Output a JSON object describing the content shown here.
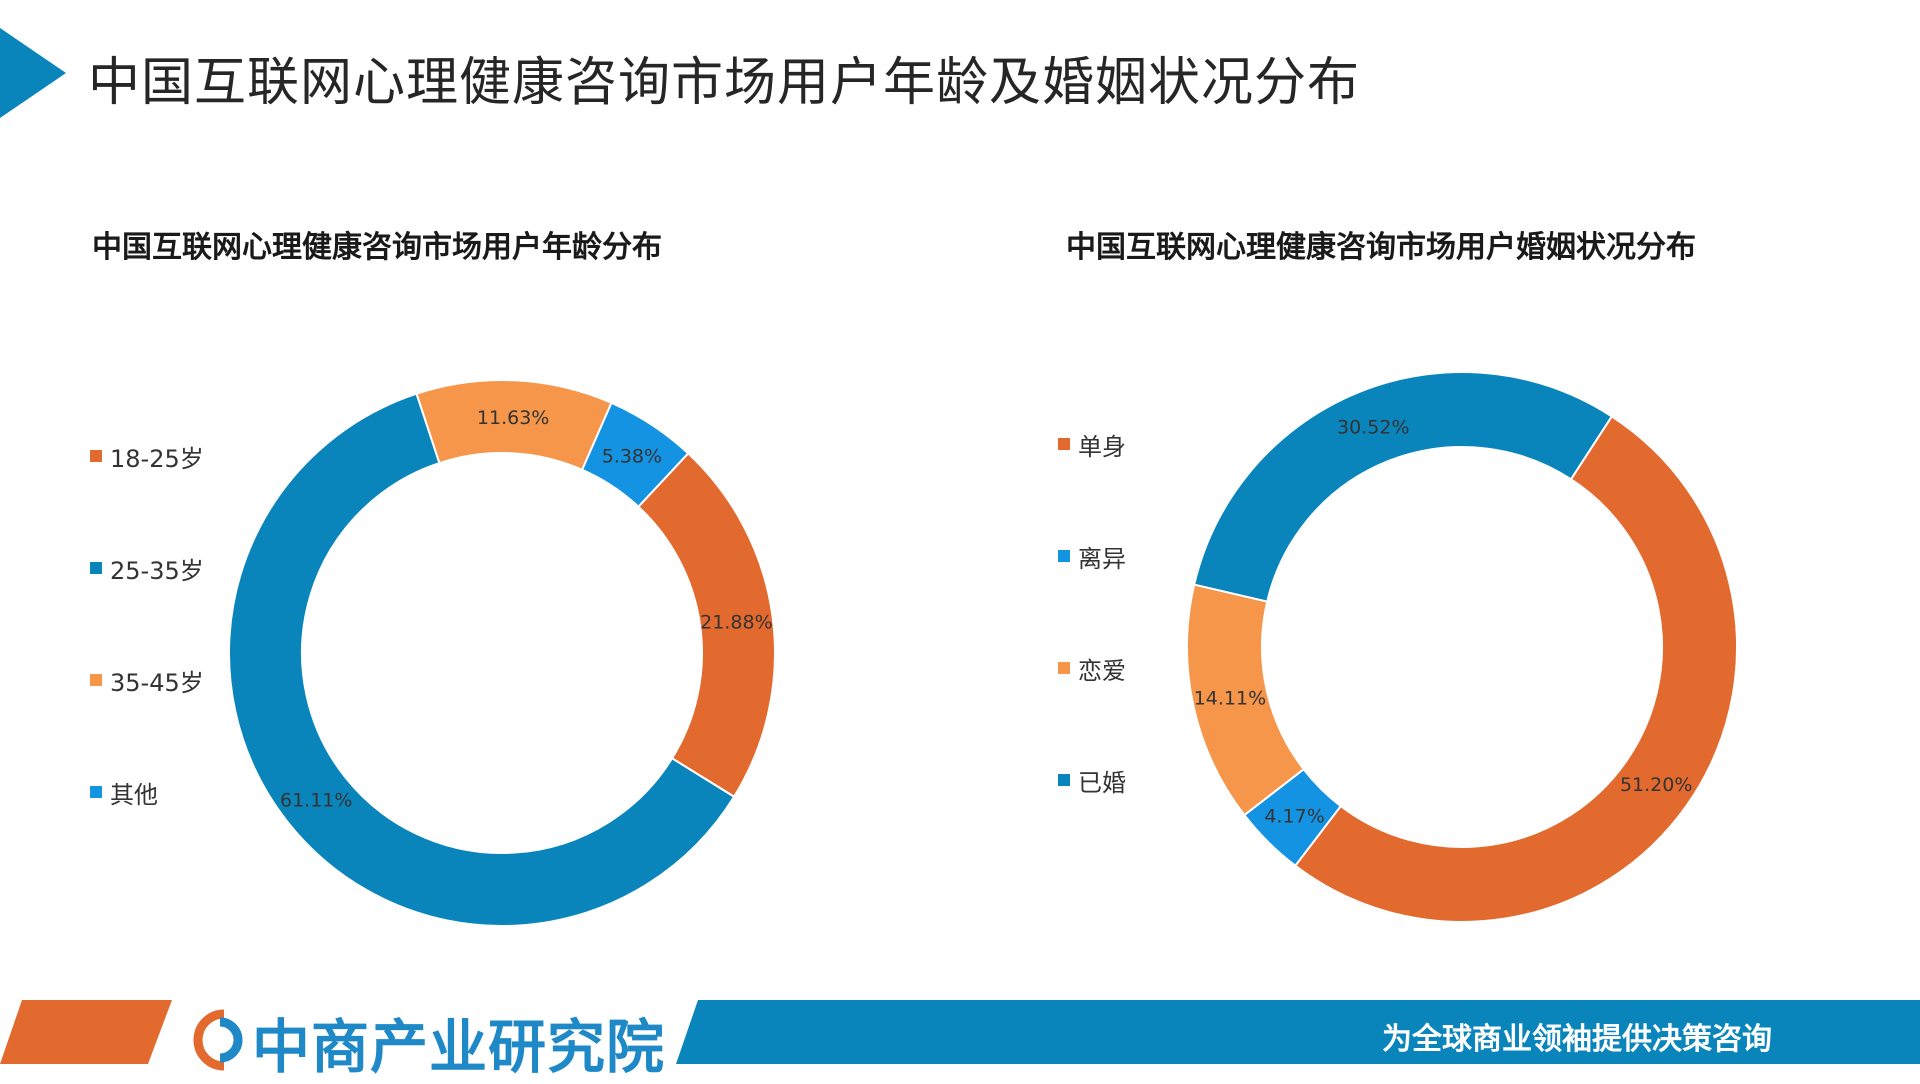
{
  "page": {
    "title": "中国互联网心理健康咨询市场用户年龄及婚姻状况分布",
    "colors": {
      "accent_blue": "#0A85BC",
      "accent_orange": "#E36A2E"
    }
  },
  "chart_data": [
    {
      "type": "pie",
      "title": "中国互联网心理健康咨询市场用户年龄分布",
      "donut": true,
      "legend_position": "left",
      "categories": [
        "18-25岁",
        "25-35岁",
        "35-45岁",
        "其他"
      ],
      "values": [
        21.88,
        61.11,
        11.63,
        5.38
      ],
      "labels": [
        "21.88%",
        "61.11%",
        "11.63%",
        "5.38%"
      ],
      "colors": [
        "#E36A2E",
        "#0A85BC",
        "#F5964A",
        "#1593E3"
      ]
    },
    {
      "type": "pie",
      "title": "中国互联网心理健康咨询市场用户婚姻状况分布",
      "donut": true,
      "legend_position": "left",
      "categories": [
        "单身",
        "离异",
        "恋爱",
        "已婚"
      ],
      "values": [
        51.2,
        4.17,
        14.11,
        30.52
      ],
      "labels": [
        "51.20%",
        "4.17%",
        "14.11%",
        "30.52%"
      ],
      "colors": [
        "#E36A2E",
        "#1593E3",
        "#F5964A",
        "#0A85BC"
      ]
    }
  ],
  "footer": {
    "brand": "中商产业研究院",
    "slogan": "为全球商业领袖提供决策咨询"
  }
}
